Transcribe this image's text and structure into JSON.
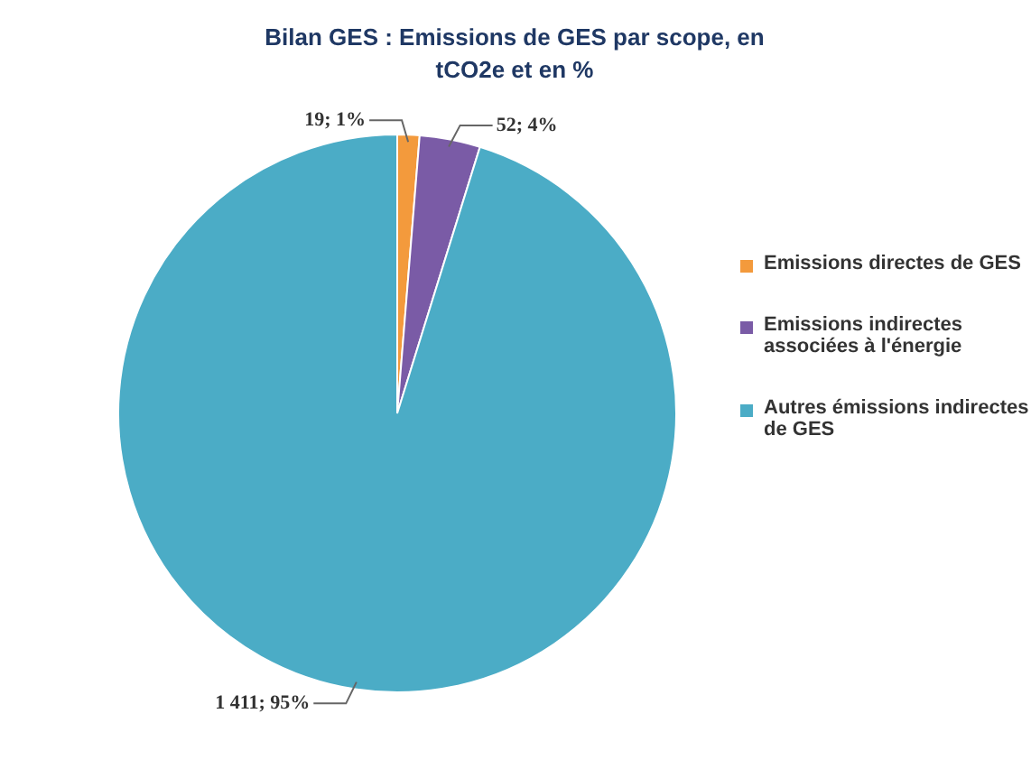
{
  "chart_data": {
    "type": "pie",
    "title": "Bilan GES : Emissions de GES par scope, en tCO2e et en %",
    "categories": [
      "Emissions directes de GES",
      "Emissions indirectes associées à l'énergie",
      "Autres émissions indirectes de GES"
    ],
    "values": [
      19,
      52,
      1411
    ],
    "colors": [
      "#f39a3c",
      "#7a5ba6",
      "#4bacc6"
    ],
    "value_labels": [
      "19; 1%",
      "52; 4%",
      "1 411; 95%"
    ],
    "legend": "right"
  }
}
